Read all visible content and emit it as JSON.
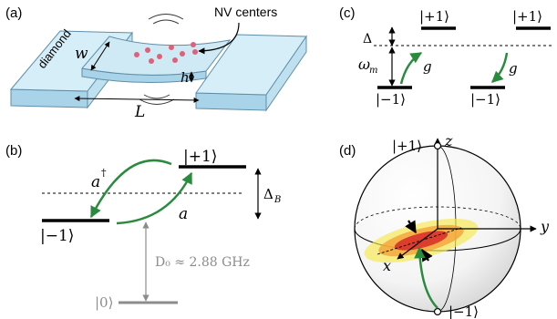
{
  "panels": {
    "a": {
      "label": "(a)",
      "material": "diamond",
      "width_symbol": "w",
      "height_symbol": "h",
      "length_symbol": "L",
      "callout": "NV centers"
    },
    "b": {
      "label": "(b)",
      "plus_state": "|+1⟩",
      "minus_state": "|−1⟩",
      "zero_state": "|0⟩",
      "creation_op": "a",
      "creation_dagger": "†",
      "annihilation_op": "a",
      "delta_symbol": "Δ",
      "delta_subscript": "B",
      "zero_field_splitting": "D₀ ≈ 2.88 GHz"
    },
    "c": {
      "label": "(c)",
      "plus_state_left": "|+1⟩",
      "plus_state_right": "|+1⟩",
      "minus_state_left": "|−1⟩",
      "minus_state_right": "|−1⟩",
      "detuning": "Δ",
      "mechanical_freq": "ω",
      "mechanical_sub": "m",
      "coupling_left": "g",
      "coupling_right": "g"
    },
    "d": {
      "label": "(d)",
      "top_state": "|+1⟩",
      "bottom_state": "|−1⟩",
      "axis_x": "x",
      "axis_y": "y",
      "axis_z": "z"
    }
  },
  "colors": {
    "green_arrow": "#2a8a3e",
    "beam_fill": "#cfe9f5",
    "beam_stroke": "#5f8fa8",
    "nv_dot": "#e0607a",
    "gray_line": "#8c8c8c",
    "squeeze_red": "#d9302a",
    "squeeze_yellow": "#f3df2a"
  }
}
